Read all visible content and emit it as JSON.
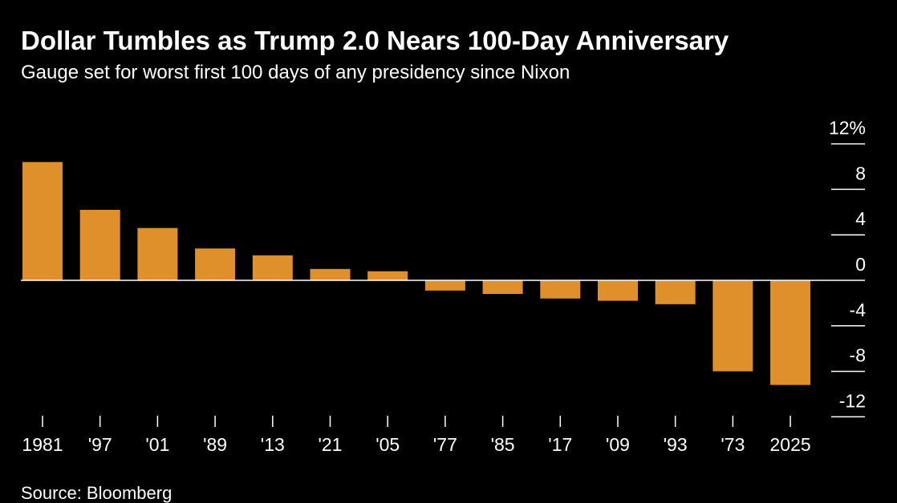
{
  "title": "Dollar Tumbles as Trump 2.0 Nears 100-Day Anniversary",
  "subtitle": "Gauge set for worst first 100 days of any presidency since Nixon",
  "source": "Source: Bloomberg",
  "colors": {
    "background": "#000000",
    "bar": "#e0902a",
    "text": "#ffffff",
    "axis": "#ffffff"
  },
  "chart_data": {
    "type": "bar",
    "categories": [
      "1981",
      "'97",
      "'01",
      "'89",
      "'13",
      "'21",
      "'05",
      "'77",
      "'85",
      "'17",
      "'09",
      "'93",
      "'73",
      "2025"
    ],
    "values": [
      10.4,
      6.2,
      4.6,
      2.8,
      2.2,
      1.0,
      0.8,
      -0.9,
      -1.2,
      -1.6,
      -1.8,
      -2.1,
      -8.0,
      -9.2
    ],
    "y_ticks": [
      12,
      8,
      4,
      0,
      -4,
      -8,
      -12
    ],
    "y_tick_labels": [
      "12%",
      "8",
      "4",
      "0",
      "-4",
      "-8",
      "-12"
    ],
    "ylim": [
      -12,
      12
    ],
    "y_axis_position": "right",
    "grid": false,
    "legend": "none"
  }
}
